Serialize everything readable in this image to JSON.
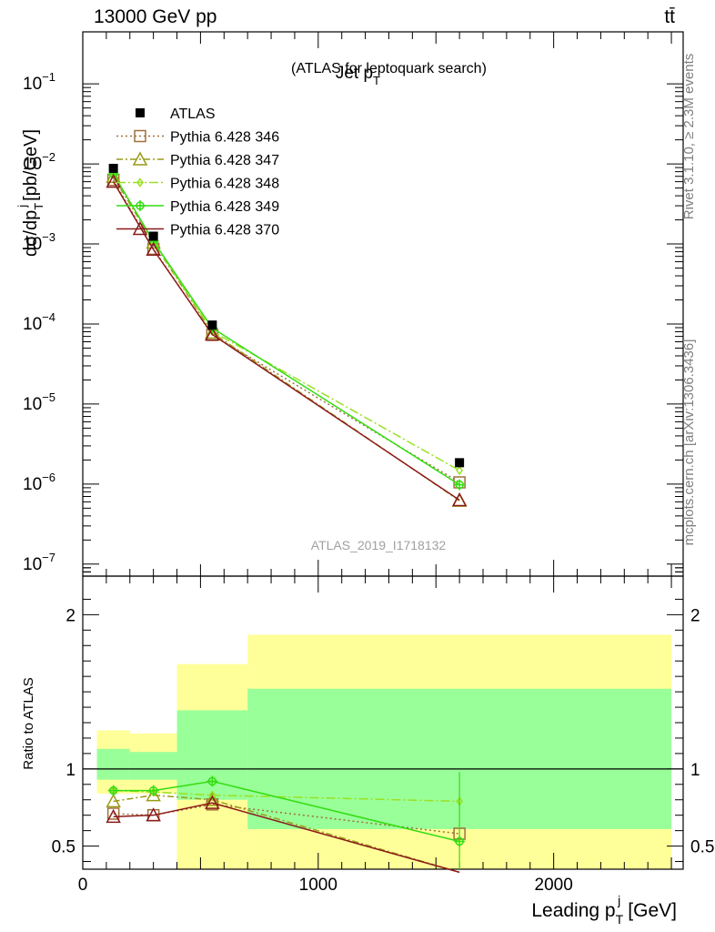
{
  "header": {
    "energy_label": "13000 GeV pp",
    "process_label": "tt̄"
  },
  "side_labels": {
    "rivet": "Rivet 3.1.10, ≥ 2.3M events",
    "mcplots": "mcplots.cern.ch [arXiv:1306.3436]"
  },
  "chart_data": {
    "type": "line",
    "title_main": "Jet p",
    "title_sub": "T",
    "title_paren": "(ATLAS for leptoquark search)",
    "watermark": "ATLAS_2019_I1718132",
    "ylabel": "dσ/dp",
    "ylabel_sub": "T",
    "ylabel_sup": "j",
    "ylabel_unit": "[pb/GeV]",
    "ratio_ylabel": "Ratio to ATLAS",
    "xlabel": "Leading p",
    "xlabel_sub": "T",
    "xlabel_sup": "j",
    "xlabel_unit": "[GeV]",
    "xlim": [
      0,
      2550
    ],
    "ylim_log": [
      -7.15,
      -0.35
    ],
    "ratio_ylim": [
      0.35,
      2.25
    ],
    "x_ticks": [
      {
        "value": 0,
        "label": "0"
      },
      {
        "value": 1000,
        "label": "1000"
      },
      {
        "value": 2000,
        "label": "2000"
      }
    ],
    "y_ticks": [
      {
        "exp": -1,
        "base": "10",
        "sup": "−1"
      },
      {
        "exp": -2,
        "base": "10",
        "sup": "−2"
      },
      {
        "exp": -3,
        "base": "10",
        "sup": "−3"
      },
      {
        "exp": -4,
        "base": "10",
        "sup": "−4"
      },
      {
        "exp": -5,
        "base": "10",
        "sup": "−5"
      },
      {
        "exp": -6,
        "base": "10",
        "sup": "−6"
      },
      {
        "exp": -7,
        "base": "10",
        "sup": "−7"
      }
    ],
    "ratio_ticks": [
      {
        "value": 0.5,
        "label": "0.5"
      },
      {
        "value": 1,
        "label": "1"
      },
      {
        "value": 2,
        "label": "2"
      }
    ],
    "bins": [
      {
        "lo": 60,
        "hi": 200,
        "green": [
          0.93,
          1.13
        ],
        "yellow": [
          0.84,
          1.25
        ]
      },
      {
        "lo": 200,
        "hi": 400,
        "green": [
          0.93,
          1.11
        ],
        "yellow": [
          0.84,
          1.23
        ]
      },
      {
        "lo": 400,
        "hi": 700,
        "green": [
          0.8,
          1.38
        ],
        "yellow": [
          0.35,
          1.68
        ]
      },
      {
        "lo": 700,
        "hi": 2500,
        "green": [
          0.61,
          1.52
        ],
        "yellow": [
          0.35,
          1.87
        ]
      }
    ],
    "data": {
      "name": "ATLAS",
      "x": [
        130,
        300,
        550,
        1600
      ],
      "y": [
        0.0088,
        0.00125,
        9.7e-05,
        1.85e-06
      ]
    },
    "series": [
      {
        "name": "Pythia 6.428 346",
        "color": "#a0703c",
        "dash": "2,3",
        "marker": "square",
        "x": [
          130,
          300,
          550,
          1600
        ],
        "y": [
          0.0063,
          0.00087,
          7.3e-05,
          1.05e-06
        ],
        "ratio": [
          0.71,
          0.7,
          0.77,
          0.58
        ]
      },
      {
        "name": "Pythia 6.428 347",
        "color": "#9a9a18",
        "dash": "7,3,2,3",
        "marker": "triangle",
        "x": [
          130,
          300,
          550,
          1600
        ],
        "y": [
          0.0069,
          0.00104,
          7.8e-05,
          6.2e-07
        ],
        "ratio": [
          0.79,
          0.83,
          0.8,
          0.33
        ]
      },
      {
        "name": "Pythia 6.428 348",
        "color": "#9ae022",
        "dash": "10,3,2,3",
        "marker": "diamond",
        "x": [
          130,
          300,
          550,
          1600
        ],
        "y": [
          0.0075,
          0.00107,
          8.1e-05,
          1.48e-06
        ],
        "ratio": [
          0.86,
          0.85,
          0.83,
          0.79
        ]
      },
      {
        "name": "Pythia 6.428 349",
        "color": "#33dd11",
        "dash": "",
        "marker": "cross-circle",
        "x": [
          130,
          300,
          550,
          1600
        ],
        "y": [
          0.0075,
          0.00108,
          8.9e-05,
          9.8e-07
        ],
        "ratio": [
          0.86,
          0.86,
          0.92,
          0.53
        ]
      },
      {
        "name": "Pythia 6.428 370",
        "color": "#8b1a1a",
        "dash": "",
        "marker": "triangle",
        "x": [
          130,
          300,
          550,
          1600
        ],
        "y": [
          0.006,
          0.00085,
          7.4e-05,
          6.3e-07
        ],
        "ratio": [
          0.69,
          0.7,
          0.78,
          0.33
        ]
      }
    ]
  }
}
